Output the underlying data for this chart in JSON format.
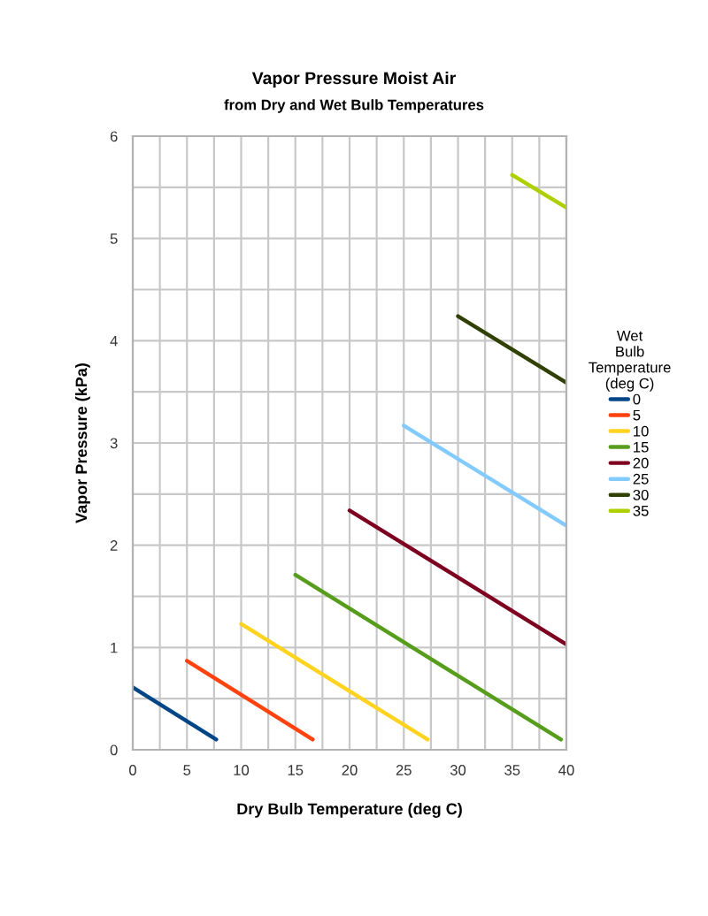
{
  "chart_data": {
    "type": "line",
    "title": "Vapor Pressure Moist Air",
    "subtitle": "from Dry and Wet Bulb Temperatures",
    "xlabel": "Dry Bulb Temperature (deg C)",
    "ylabel": "Vapor Pressure (kPa)",
    "legend_title": "Wet\nBulb\nTemperature\n(deg C)",
    "legend": "right",
    "grid": true,
    "marker": "none",
    "line_style": "solid",
    "xlim": [
      0,
      40
    ],
    "ylim": [
      0,
      6
    ],
    "xticks": [
      0,
      {
        "value": 2.5,
        "label": null
      },
      5,
      {
        "value": 7.5,
        "label": null
      },
      10,
      {
        "value": 12.5,
        "label": null
      },
      15,
      {
        "value": 17.5,
        "label": null
      },
      20,
      {
        "value": 22.5,
        "label": null
      },
      25,
      {
        "value": 27.5,
        "label": null
      },
      30,
      {
        "value": 32.5,
        "label": null
      },
      35,
      {
        "value": 37.5,
        "label": null
      },
      40
    ],
    "yticks": [
      0,
      {
        "value": 0.5,
        "label": null
      },
      1,
      {
        "value": 1.5,
        "label": null
      },
      2,
      {
        "value": 2.5,
        "label": null
      },
      3,
      {
        "value": 3.5,
        "label": null
      },
      4,
      {
        "value": 4.5,
        "label": null
      },
      5,
      {
        "value": 5.5,
        "label": null
      },
      6
    ],
    "series": [
      {
        "name": "0",
        "color": "#004586",
        "x": [
          0,
          7.7
        ],
        "values": [
          0.61,
          0.1
        ]
      },
      {
        "name": "5",
        "color": "#ff420e",
        "x": [
          5,
          16.6
        ],
        "values": [
          0.87,
          0.1
        ]
      },
      {
        "name": "10",
        "color": "#ffd320",
        "x": [
          10,
          27.2
        ],
        "values": [
          1.23,
          0.1
        ]
      },
      {
        "name": "15",
        "color": "#579d1c",
        "x": [
          15,
          39.5
        ],
        "values": [
          1.71,
          0.1
        ]
      },
      {
        "name": "20",
        "color": "#7e0021",
        "x": [
          20,
          40
        ],
        "values": [
          2.34,
          1.03
        ]
      },
      {
        "name": "25",
        "color": "#83caff",
        "x": [
          25,
          40
        ],
        "values": [
          3.17,
          2.19
        ]
      },
      {
        "name": "30",
        "color": "#314004",
        "x": [
          30,
          40
        ],
        "values": [
          4.24,
          3.59
        ]
      },
      {
        "name": "35",
        "color": "#aecf00",
        "x": [
          35,
          40
        ],
        "values": [
          5.62,
          5.3
        ]
      }
    ]
  }
}
